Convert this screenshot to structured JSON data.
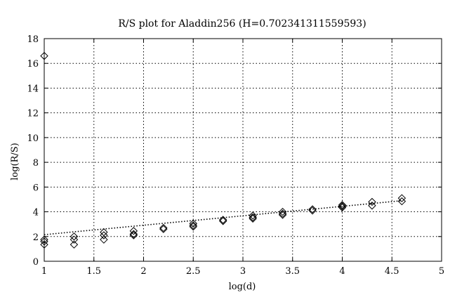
{
  "chart_data": {
    "type": "scatter",
    "title": "R/S plot for Aladdin256 (H=0.702341311559593)",
    "xlabel": "log(d)",
    "ylabel": "log(R/S)",
    "xlim": [
      1,
      5
    ],
    "ylim": [
      0,
      18
    ],
    "xticks": [
      "1",
      "1.5",
      "2",
      "2.5",
      "3",
      "3.5",
      "4",
      "4.5",
      "5"
    ],
    "yticks": [
      "0",
      "2",
      "4",
      "6",
      "8",
      "10",
      "12",
      "14",
      "16",
      "18"
    ],
    "grid": true,
    "marker": "diamond-open",
    "points": [
      {
        "x": 1.0,
        "y": 16.6
      },
      {
        "x": 1.0,
        "y": 1.75
      },
      {
        "x": 1.0,
        "y": 1.6
      },
      {
        "x": 1.0,
        "y": 1.35
      },
      {
        "x": 1.3,
        "y": 2.0
      },
      {
        "x": 1.3,
        "y": 1.75
      },
      {
        "x": 1.3,
        "y": 1.35
      },
      {
        "x": 1.6,
        "y": 2.35
      },
      {
        "x": 1.6,
        "y": 2.1
      },
      {
        "x": 1.6,
        "y": 1.75
      },
      {
        "x": 1.9,
        "y": 2.45
      },
      {
        "x": 1.9,
        "y": 2.2
      },
      {
        "x": 1.9,
        "y": 2.1
      },
      {
        "x": 2.2,
        "y": 2.7
      },
      {
        "x": 2.2,
        "y": 2.6
      },
      {
        "x": 2.5,
        "y": 3.05
      },
      {
        "x": 2.5,
        "y": 2.9
      },
      {
        "x": 2.5,
        "y": 2.8
      },
      {
        "x": 2.8,
        "y": 3.35
      },
      {
        "x": 2.8,
        "y": 3.25
      },
      {
        "x": 3.1,
        "y": 3.7
      },
      {
        "x": 3.1,
        "y": 3.55
      },
      {
        "x": 3.1,
        "y": 3.45
      },
      {
        "x": 3.4,
        "y": 4.0
      },
      {
        "x": 3.4,
        "y": 3.85
      },
      {
        "x": 3.4,
        "y": 3.75
      },
      {
        "x": 3.7,
        "y": 4.2
      },
      {
        "x": 3.7,
        "y": 4.1
      },
      {
        "x": 4.0,
        "y": 4.55
      },
      {
        "x": 4.0,
        "y": 4.45
      },
      {
        "x": 4.0,
        "y": 4.35
      },
      {
        "x": 4.3,
        "y": 4.8
      },
      {
        "x": 4.3,
        "y": 4.5
      },
      {
        "x": 4.6,
        "y": 5.1
      },
      {
        "x": 4.6,
        "y": 4.85
      }
    ],
    "fit_line": {
      "x": [
        1.0,
        4.6
      ],
      "y": [
        2.15,
        4.9
      ]
    }
  }
}
